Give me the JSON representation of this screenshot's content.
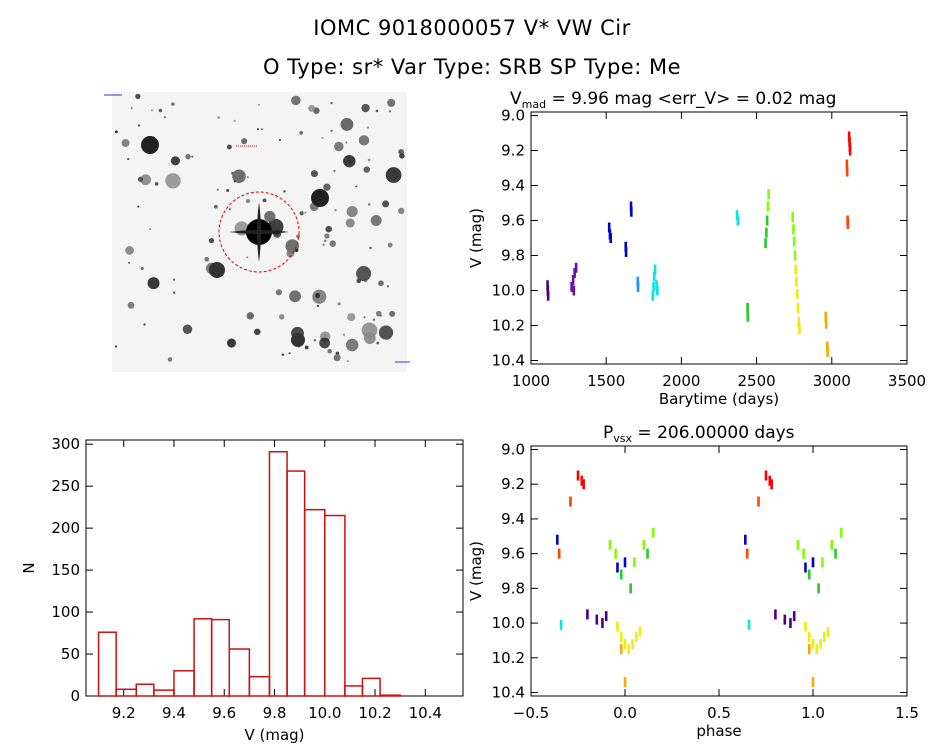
{
  "header": {
    "title": "IOMC 9018000057    V* VW Cir",
    "subtitle": "O Type: sr*  Var Type: SRB  SP Type: Me"
  },
  "colors": {
    "hist_bar": "#cc1111",
    "series_palette": [
      "#4b0082",
      "#6a0dad",
      "#0000cc",
      "#1e90ff",
      "#00e5ee",
      "#22cc22",
      "#7fff00",
      "#eeee00",
      "#ffa500",
      "#ff4500",
      "#ff0000"
    ]
  },
  "image_panel": {
    "type": "finder-chart",
    "circle_color": "#dd0000"
  },
  "chart_data": [
    {
      "type": "scatter",
      "title": "V_mad = 9.96 mag <err_V> = 0.02 mag",
      "title_main": "V",
      "title_sub": "mad",
      "title_rest": " = 9.96 mag <err_V> = 0.02 mag",
      "xlabel": "Barytime (days)",
      "ylabel": "V (mag)",
      "xlim": [
        1000,
        3500
      ],
      "ylim": [
        10.42,
        8.98
      ],
      "xticks": [
        "1000",
        "1500",
        "2000",
        "2500",
        "3000",
        "3500"
      ],
      "yticks": [
        "9.0",
        "9.2",
        "9.4",
        "9.6",
        "9.8",
        "10.0",
        "10.2",
        "10.4"
      ],
      "series": [
        {
          "color": "#4b0082",
          "points": [
            [
              1110,
              9.97
            ],
            [
              1112,
              10.0
            ],
            [
              1114,
              10.03
            ]
          ]
        },
        {
          "color": "#6a0dad",
          "points": [
            [
              1270,
              9.98
            ],
            [
              1280,
              9.94
            ],
            [
              1290,
              9.9
            ],
            [
              1300,
              9.87
            ],
            [
              1285,
              10.0
            ]
          ]
        },
        {
          "color": "#0000cc",
          "points": [
            [
              1520,
              9.64
            ],
            [
              1525,
              9.68
            ],
            [
              1530,
              9.7
            ],
            [
              1630,
              9.75
            ],
            [
              1632,
              9.78
            ],
            [
              1665,
              9.52
            ],
            [
              1667,
              9.55
            ]
          ]
        },
        {
          "color": "#1e90ff",
          "points": [
            [
              1710,
              9.95
            ],
            [
              1712,
              9.98
            ]
          ]
        },
        {
          "color": "#00e5ee",
          "points": [
            [
              1810,
              10.03
            ],
            [
              1815,
              9.98
            ],
            [
              1820,
              9.92
            ],
            [
              1825,
              9.88
            ],
            [
              1835,
              9.97
            ],
            [
              1840,
              10.0
            ],
            [
              2370,
              9.57
            ],
            [
              2375,
              9.6
            ]
          ]
        },
        {
          "color": "#22cc22",
          "points": [
            [
              2440,
              10.1
            ],
            [
              2442,
              10.15
            ],
            [
              2560,
              9.73
            ],
            [
              2565,
              9.67
            ],
            [
              2570,
              9.6
            ]
          ]
        },
        {
          "color": "#7fff00",
          "points": [
            [
              2575,
              9.52
            ],
            [
              2580,
              9.45
            ],
            [
              2740,
              9.58
            ],
            [
              2745,
              9.65
            ],
            [
              2750,
              9.72
            ],
            [
              2755,
              9.8
            ]
          ]
        },
        {
          "color": "#eeee00",
          "points": [
            [
              2760,
              9.88
            ],
            [
              2765,
              9.95
            ],
            [
              2770,
              10.02
            ],
            [
              2775,
              10.1
            ],
            [
              2780,
              10.18
            ],
            [
              2785,
              10.22
            ]
          ]
        },
        {
          "color": "#ffa500",
          "points": [
            [
              2960,
              10.15
            ],
            [
              2962,
              10.19
            ],
            [
              2970,
              10.32
            ],
            [
              2972,
              10.35
            ]
          ]
        },
        {
          "color": "#ff4500",
          "points": [
            [
              3100,
              9.28
            ],
            [
              3102,
              9.32
            ],
            [
              3105,
              9.6
            ],
            [
              3107,
              9.62
            ]
          ]
        },
        {
          "color": "#ff0000",
          "points": [
            [
              3115,
              9.12
            ],
            [
              3118,
              9.15
            ],
            [
              3120,
              9.18
            ],
            [
              3122,
              9.2
            ]
          ]
        }
      ]
    },
    {
      "type": "bar",
      "title": "",
      "xlabel": "V (mag)",
      "ylabel": "N",
      "xlim": [
        9.05,
        10.55
      ],
      "ylim": [
        0,
        305
      ],
      "xticks": [
        "9.2",
        "9.4",
        "9.6",
        "9.8",
        "10.0",
        "10.2",
        "10.4"
      ],
      "yticks": [
        "0",
        "50",
        "100",
        "150",
        "200",
        "250",
        "300"
      ],
      "bin_width": 0.1,
      "bin_centers": [
        9.15,
        9.2,
        9.3,
        9.35,
        9.4,
        9.5,
        9.55,
        9.6,
        9.7,
        9.75,
        9.8,
        9.9,
        10.0,
        10.05,
        10.1,
        10.2,
        10.25,
        10.3,
        10.4
      ],
      "values": []
    },
    {
      "type": "scatter",
      "title": "P_vsx = 206.00000 days",
      "title_main": "P",
      "title_sub": "vsx",
      "title_rest": " = 206.00000 days",
      "xlabel": "phase",
      "ylabel": "V (mag)",
      "xlim": [
        -0.5,
        1.5
      ],
      "ylim": [
        10.42,
        8.98
      ],
      "xticks": [
        "−0.5",
        "0.0",
        "0.5",
        "1.0",
        "1.5"
      ],
      "yticks": [
        "9.0",
        "9.2",
        "9.4",
        "9.6",
        "9.8",
        "10.0",
        "10.2",
        "10.4"
      ],
      "series": [
        {
          "color": "#ff0000",
          "points": [
            [
              -0.25,
              9.15
            ],
            [
              -0.23,
              9.18
            ],
            [
              -0.22,
              9.2
            ]
          ]
        },
        {
          "color": "#ff4500",
          "points": [
            [
              -0.29,
              9.3
            ],
            [
              -0.35,
              9.6
            ]
          ]
        },
        {
          "color": "#0000cc",
          "points": [
            [
              -0.36,
              9.52
            ],
            [
              -0.04,
              9.68
            ],
            [
              0.0,
              9.65
            ]
          ]
        },
        {
          "color": "#4b0082",
          "points": [
            [
              -0.2,
              9.95
            ],
            [
              -0.15,
              9.98
            ],
            [
              -0.12,
              10.0
            ],
            [
              -0.1,
              9.96
            ]
          ]
        },
        {
          "color": "#00e5ee",
          "points": [
            [
              -0.34,
              10.01
            ]
          ]
        },
        {
          "color": "#7fff00",
          "points": [
            [
              -0.08,
              9.55
            ],
            [
              -0.05,
              9.6
            ],
            [
              0.05,
              9.65
            ],
            [
              0.1,
              9.55
            ],
            [
              0.15,
              9.48
            ]
          ]
        },
        {
          "color": "#22cc22",
          "points": [
            [
              -0.02,
              9.72
            ],
            [
              0.03,
              9.8
            ],
            [
              0.12,
              9.6
            ]
          ]
        },
        {
          "color": "#eeee00",
          "points": [
            [
              -0.04,
              10.02
            ],
            [
              -0.02,
              10.08
            ],
            [
              0.0,
              10.12
            ],
            [
              0.02,
              10.15
            ],
            [
              0.04,
              10.12
            ],
            [
              0.06,
              10.08
            ],
            [
              0.08,
              10.05
            ]
          ]
        },
        {
          "color": "#ffa500",
          "points": [
            [
              0.0,
              10.34
            ],
            [
              -0.02,
              10.15
            ]
          ]
        }
      ]
    }
  ]
}
